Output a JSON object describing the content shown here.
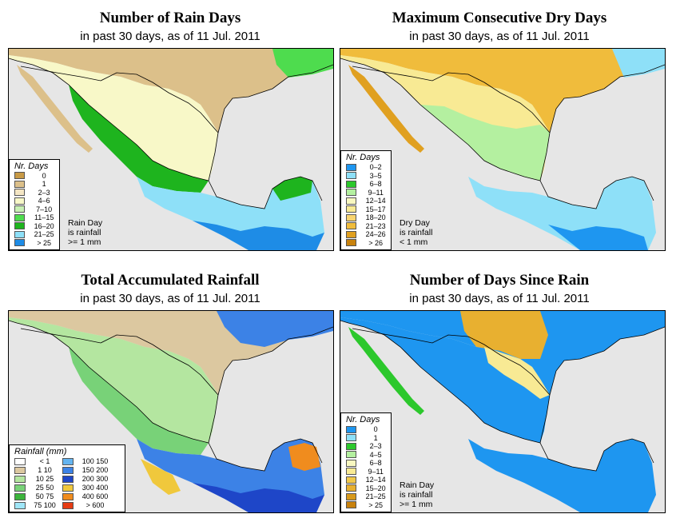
{
  "subtitle_text": "in past 30 days, as of  11 Jul. 2011",
  "panels": {
    "rain_days": {
      "title": "Number of Rain Days",
      "legend_title": "Nr. Days",
      "legend": [
        {
          "label": "0",
          "color": "#c89a46"
        },
        {
          "label": "1",
          "color": "#dcc08a"
        },
        {
          "label": "2–3",
          "color": "#f4e6c4"
        },
        {
          "label": "4–6",
          "color": "#f8f8c8"
        },
        {
          "label": "7–10",
          "color": "#c8f0b4"
        },
        {
          "label": "11–15",
          "color": "#4edc4e"
        },
        {
          "label": "16–20",
          "color": "#1eb41e"
        },
        {
          "label": "21–25",
          "color": "#8ee0f8"
        },
        {
          "label": "> 25",
          "color": "#1e8ce6"
        }
      ],
      "note": [
        "Rain Day",
        "is rainfall",
        ">= 1 mm"
      ]
    },
    "dry_days": {
      "title": "Maximum Consecutive Dry Days",
      "legend_title": "Nr. Days",
      "legend": [
        {
          "label": "0–2",
          "color": "#1e96f0"
        },
        {
          "label": "3–5",
          "color": "#8ee0f8"
        },
        {
          "label": "6–8",
          "color": "#2cc82c"
        },
        {
          "label": "9–11",
          "color": "#b4f0a0"
        },
        {
          "label": "12–14",
          "color": "#f8f8c0"
        },
        {
          "label": "15–17",
          "color": "#f8ea94"
        },
        {
          "label": "18–20",
          "color": "#f8d470"
        },
        {
          "label": "21–23",
          "color": "#f0bc3c"
        },
        {
          "label": "24–26",
          "color": "#e0a020"
        },
        {
          "label": "> 26",
          "color": "#c8820e"
        }
      ],
      "note": [
        "Dry Day",
        "is rainfall",
        "< 1 mm"
      ]
    },
    "total_rain": {
      "title": "Total Accumulated Rainfall",
      "legend_title": "Rainfall (mm)",
      "legend": [
        {
          "label": "<  1",
          "color": "#ffffff"
        },
        {
          "label": "1    10",
          "color": "#dcc8a0"
        },
        {
          "label": "10    25",
          "color": "#b4e6a0"
        },
        {
          "label": "25    50",
          "color": "#78d278"
        },
        {
          "label": "50    75",
          "color": "#3cb43c"
        },
        {
          "label": "75  100",
          "color": "#a0e6f8"
        },
        {
          "label": "100  150",
          "color": "#64b4f0"
        },
        {
          "label": "150  200",
          "color": "#3c82e6"
        },
        {
          "label": "200  300",
          "color": "#1e46c8"
        },
        {
          "label": "300  400",
          "color": "#f0c83c"
        },
        {
          "label": "400  600",
          "color": "#f08c1e"
        },
        {
          "label": "> 600",
          "color": "#e63c14"
        }
      ]
    },
    "days_since": {
      "title": "Number of Days Since Rain",
      "legend_title": "Nr. Days",
      "legend": [
        {
          "label": "0",
          "color": "#1e96f0"
        },
        {
          "label": "1",
          "color": "#8ee0f8"
        },
        {
          "label": "2–3",
          "color": "#2cc82c"
        },
        {
          "label": "4–5",
          "color": "#b4f0a0"
        },
        {
          "label": "6–8",
          "color": "#f8f8c0"
        },
        {
          "label": "9–11",
          "color": "#f8ea94"
        },
        {
          "label": "12–14",
          "color": "#f0c84a"
        },
        {
          "label": "15–20",
          "color": "#e8b030"
        },
        {
          "label": "21–25",
          "color": "#d89a1c"
        },
        {
          "label": "> 25",
          "color": "#c8820e"
        }
      ],
      "note": [
        "Rain Day",
        "is rainfall",
        ">= 1 mm"
      ]
    }
  },
  "colors": {
    "ocean": "#e6e6e6",
    "border": "#000000"
  }
}
